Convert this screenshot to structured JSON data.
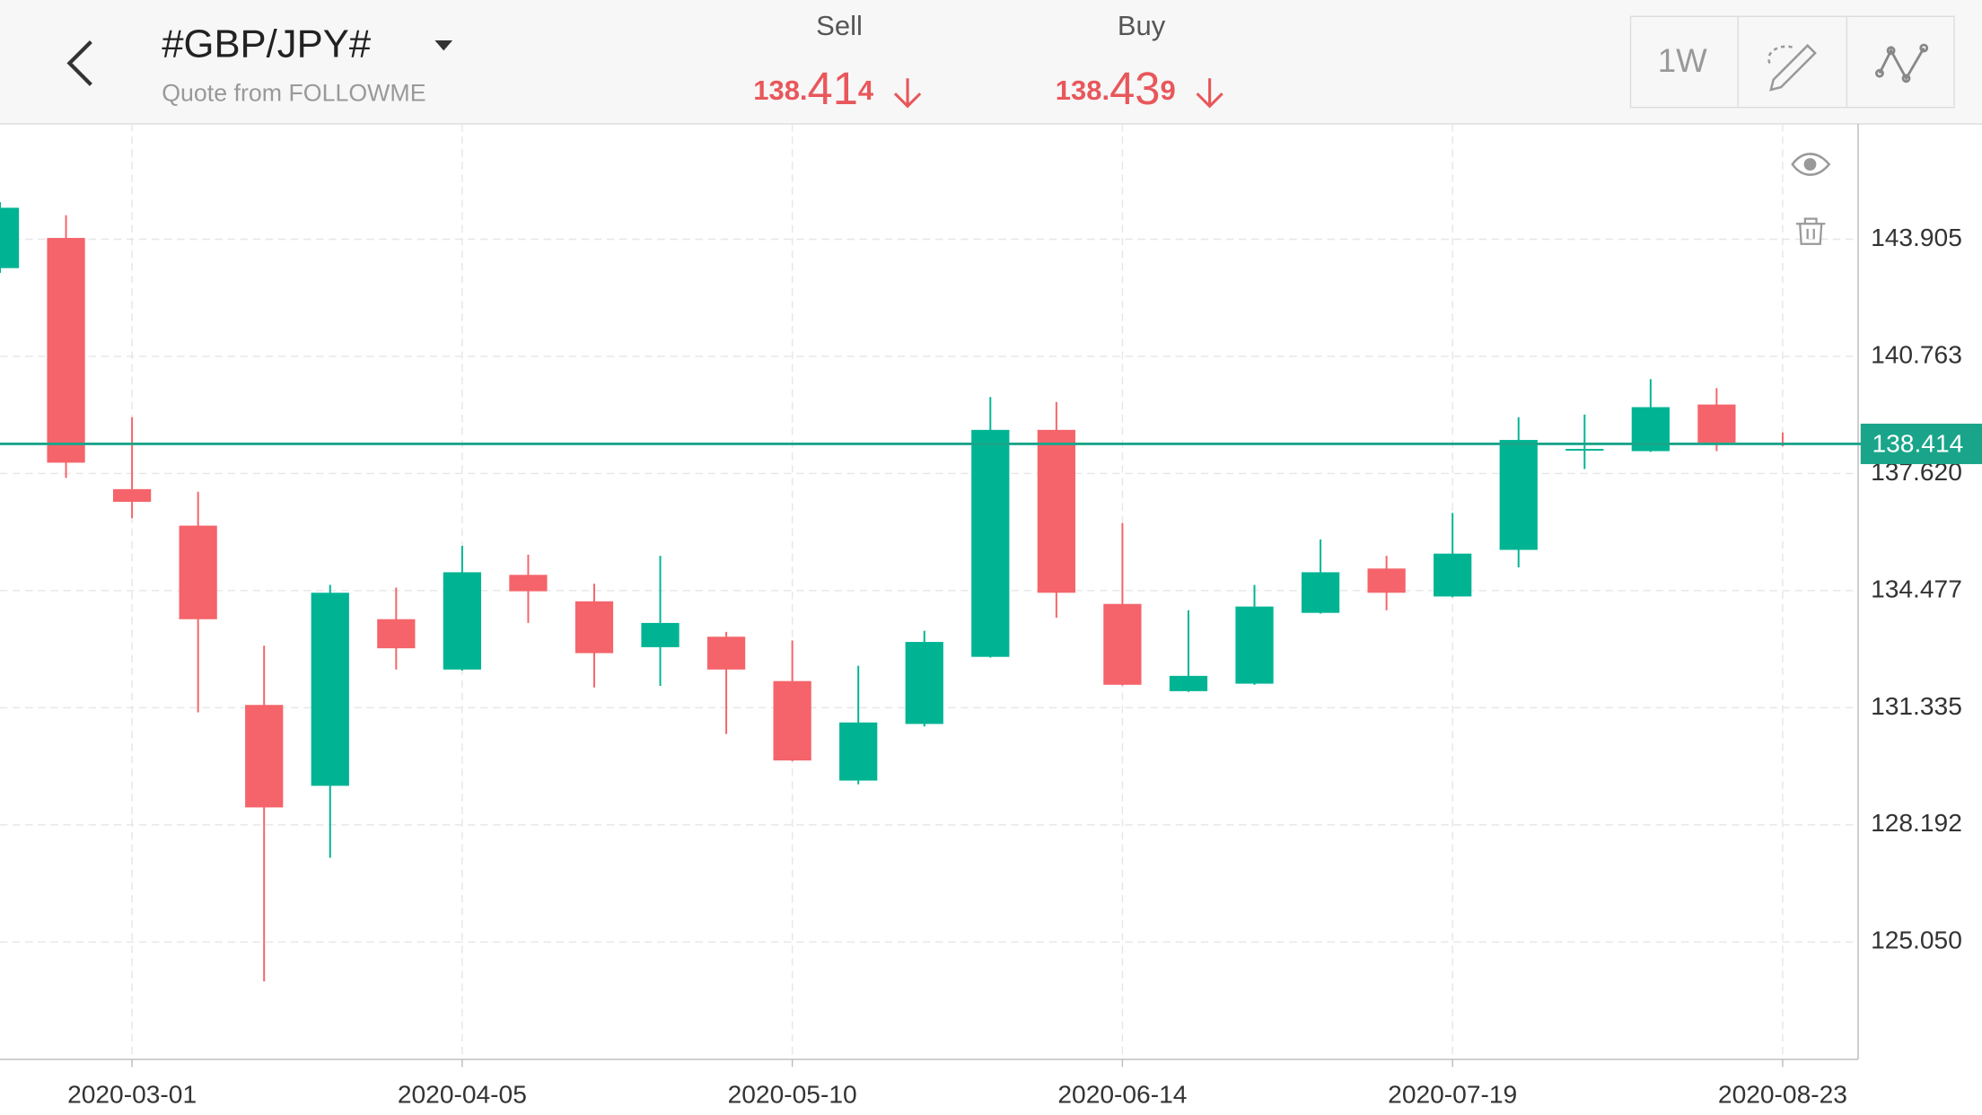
{
  "header": {
    "symbol": "#GBP/JPY#",
    "source": "Quote from FOLLOWME",
    "sell": {
      "label": "Sell",
      "price_parts": [
        "138.",
        "41",
        "4"
      ]
    },
    "buy": {
      "label": "Buy",
      "price_parts": [
        "138.",
        "43",
        "9"
      ]
    },
    "period": "1W"
  },
  "chart_data": {
    "type": "candlestick",
    "x": [
      "2020-02-16",
      "2020-02-23",
      "2020-03-01",
      "2020-03-08",
      "2020-03-15",
      "2020-03-22",
      "2020-03-29",
      "2020-04-05",
      "2020-04-12",
      "2020-04-19",
      "2020-04-26",
      "2020-05-03",
      "2020-05-10",
      "2020-05-17",
      "2020-05-24",
      "2020-05-31",
      "2020-06-07",
      "2020-06-14",
      "2020-06-21",
      "2020-06-28",
      "2020-07-05",
      "2020-07-12",
      "2020-07-19",
      "2020-07-26",
      "2020-08-02",
      "2020-08-09",
      "2020-08-16",
      "2020-08-23"
    ],
    "open": [
      143.13,
      143.94,
      137.2,
      136.22,
      131.41,
      129.24,
      133.71,
      132.36,
      134.9,
      134.19,
      132.96,
      133.24,
      132.05,
      129.38,
      130.9,
      132.7,
      138.79,
      134.12,
      131.78,
      131.98,
      133.88,
      135.07,
      134.32,
      135.57,
      138.25,
      138.22,
      139.47,
      138.45
    ],
    "high": [
      144.9,
      144.55,
      139.13,
      137.13,
      133.0,
      134.63,
      134.56,
      135.68,
      135.44,
      134.66,
      135.41,
      133.37,
      133.14,
      132.46,
      133.4,
      139.67,
      139.54,
      136.29,
      133.95,
      134.63,
      135.85,
      135.41,
      136.56,
      139.13,
      139.2,
      140.15,
      139.91,
      138.72
    ],
    "low": [
      143.0,
      137.5,
      136.42,
      131.21,
      123.99,
      127.31,
      132.36,
      132.33,
      133.61,
      131.88,
      131.92,
      130.63,
      129.9,
      129.28,
      130.83,
      132.68,
      133.75,
      131.93,
      131.76,
      131.95,
      133.86,
      133.95,
      134.3,
      135.1,
      137.74,
      138.2,
      138.22,
      138.35
    ],
    "close": [
      144.75,
      137.91,
      136.86,
      133.71,
      128.66,
      134.42,
      132.93,
      134.97,
      134.46,
      132.8,
      133.61,
      132.36,
      129.92,
      130.94,
      133.1,
      138.79,
      134.42,
      131.95,
      132.19,
      134.05,
      134.97,
      134.42,
      135.47,
      138.52,
      138.28,
      139.4,
      138.45,
      138.41
    ],
    "up_color": "#00b493",
    "down_color": "#f4646a",
    "xlim": [
      "2020-02-16",
      "2020-08-31"
    ],
    "xticks": [
      "2020-03-01",
      "2020-04-05",
      "2020-05-10",
      "2020-06-14",
      "2020-07-19",
      "2020-08-23"
    ],
    "ylim": [
      121.9,
      147.0
    ],
    "yticks": [
      {
        "value": 125.05,
        "label": "125.050"
      },
      128.192,
      131.335,
      134.477,
      {
        "value": 137.62,
        "label": "137.620"
      },
      140.763,
      143.905
    ],
    "grid": true,
    "last_price": 138.414,
    "last_price_color": "#1aa58a"
  }
}
